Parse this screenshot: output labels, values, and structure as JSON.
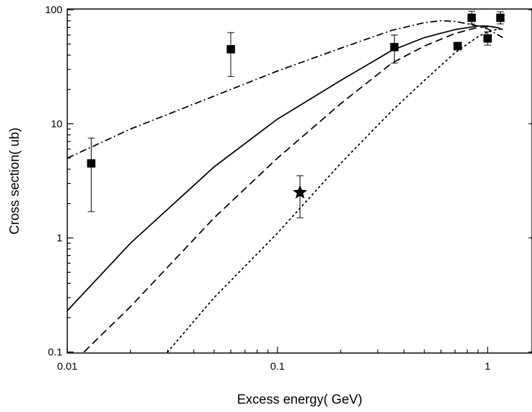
{
  "chart_data": {
    "type": "scatter",
    "x_scale": "log",
    "y_scale": "log",
    "xlim": [
      0.01,
      1.18
    ],
    "ylim": [
      0.1,
      105
    ],
    "xlabel": "Excess energy(  GeV)",
    "ylabel": "Cross section(  ub)",
    "x_ticks": [
      {
        "value": 0.01,
        "label": "0.01"
      },
      {
        "value": 0.1,
        "label": "0.1"
      },
      {
        "value": 1,
        "label": "1"
      }
    ],
    "y_ticks": [
      {
        "value": 0.1,
        "label": "0.1"
      },
      {
        "value": 1,
        "label": "1"
      },
      {
        "value": 10,
        "label": "10"
      },
      {
        "value": 100,
        "label": "100"
      }
    ],
    "grid": false,
    "legend": "none",
    "series": [
      {
        "marker": "square",
        "style": "markers",
        "points": [
          {
            "x": 0.013,
            "y": 4.5,
            "err_low": 1.7,
            "err_high": 7.5
          },
          {
            "x": 0.06,
            "y": 45,
            "err_low": 26,
            "err_high": 63
          },
          {
            "x": 0.36,
            "y": 47,
            "err_low": 34,
            "err_high": 60
          },
          {
            "x": 0.72,
            "y": 48
          },
          {
            "x": 0.84,
            "y": 85,
            "err_low": 75,
            "err_high": 97
          },
          {
            "x": 1.0,
            "y": 56,
            "err_low": 49,
            "err_high": 64
          },
          {
            "x": 1.15,
            "y": 85,
            "err_low": 75,
            "err_high": 96
          }
        ]
      },
      {
        "marker": "star",
        "style": "markers",
        "points": [
          {
            "x": 0.128,
            "y": 2.5,
            "err_low": 1.5,
            "err_high": 3.5
          }
        ]
      },
      {
        "style": "solid",
        "points": [
          {
            "x": 0.01,
            "y": 0.23
          },
          {
            "x": 0.02,
            "y": 0.9
          },
          {
            "x": 0.05,
            "y": 4.2
          },
          {
            "x": 0.1,
            "y": 11
          },
          {
            "x": 0.2,
            "y": 24
          },
          {
            "x": 0.35,
            "y": 44
          },
          {
            "x": 0.5,
            "y": 57
          },
          {
            "x": 0.7,
            "y": 67
          },
          {
            "x": 0.9,
            "y": 72
          },
          {
            "x": 1.0,
            "y": 72
          },
          {
            "x": 1.1,
            "y": 70
          },
          {
            "x": 1.18,
            "y": 67
          }
        ]
      },
      {
        "style": "dashed",
        "points": [
          {
            "x": 0.012,
            "y": 0.1
          },
          {
            "x": 0.02,
            "y": 0.25
          },
          {
            "x": 0.05,
            "y": 1.5
          },
          {
            "x": 0.1,
            "y": 5
          },
          {
            "x": 0.2,
            "y": 15
          },
          {
            "x": 0.35,
            "y": 34
          },
          {
            "x": 0.5,
            "y": 48
          },
          {
            "x": 0.7,
            "y": 62
          },
          {
            "x": 0.9,
            "y": 70
          },
          {
            "x": 1.0,
            "y": 71
          },
          {
            "x": 1.1,
            "y": 70
          },
          {
            "x": 1.18,
            "y": 68
          }
        ]
      },
      {
        "style": "dotted",
        "points": [
          {
            "x": 0.03,
            "y": 0.1
          },
          {
            "x": 0.05,
            "y": 0.3
          },
          {
            "x": 0.1,
            "y": 1.1
          },
          {
            "x": 0.2,
            "y": 4.5
          },
          {
            "x": 0.35,
            "y": 13
          },
          {
            "x": 0.5,
            "y": 24
          },
          {
            "x": 0.7,
            "y": 42
          },
          {
            "x": 0.9,
            "y": 58
          },
          {
            "x": 1.0,
            "y": 64
          },
          {
            "x": 1.1,
            "y": 67
          },
          {
            "x": 1.18,
            "y": 68
          }
        ]
      },
      {
        "style": "dash-dot",
        "points": [
          {
            "x": 0.01,
            "y": 5
          },
          {
            "x": 0.02,
            "y": 9
          },
          {
            "x": 0.05,
            "y": 17.5
          },
          {
            "x": 0.1,
            "y": 29
          },
          {
            "x": 0.2,
            "y": 46
          },
          {
            "x": 0.35,
            "y": 66
          },
          {
            "x": 0.5,
            "y": 77
          },
          {
            "x": 0.6,
            "y": 80
          },
          {
            "x": 0.7,
            "y": 79
          },
          {
            "x": 0.9,
            "y": 72
          },
          {
            "x": 1.0,
            "y": 68
          },
          {
            "x": 1.18,
            "y": 57
          }
        ]
      }
    ]
  }
}
